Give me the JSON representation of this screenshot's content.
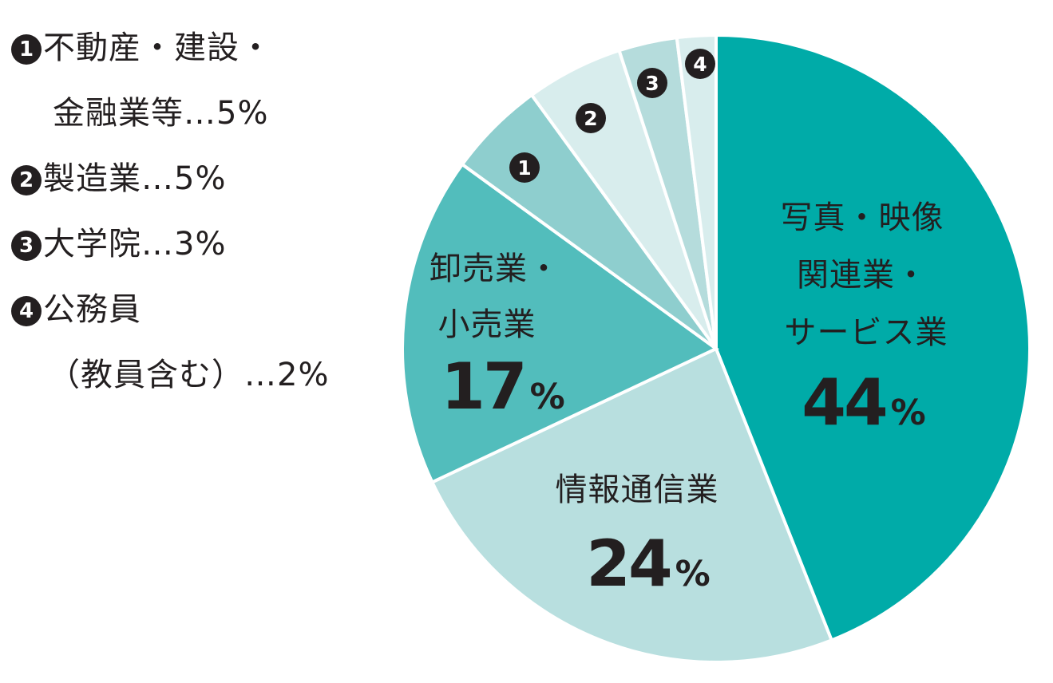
{
  "chart_data": {
    "type": "pie",
    "title": "",
    "start": "12 o'clock, clockwise",
    "slices": [
      {
        "key": "photo",
        "label_lines": [
          "写真・映像",
          "関連業・",
          "サービス業"
        ],
        "value": 44,
        "value_label": "44",
        "unit": "%",
        "color": "#00aba8"
      },
      {
        "key": "info",
        "label_lines": [
          "情報通信業"
        ],
        "value": 24,
        "value_label": "24",
        "unit": "%",
        "color": "#b8dfdf"
      },
      {
        "key": "retail",
        "label_lines": [
          "卸売業・",
          "小売業"
        ],
        "value": 17,
        "value_label": "17",
        "unit": "%",
        "color": "#52bdbc"
      },
      {
        "key": "s1",
        "marker": "1",
        "value": 5,
        "color": "#8ecece"
      },
      {
        "key": "s2",
        "marker": "2",
        "value": 5,
        "color": "#d8eded"
      },
      {
        "key": "s3",
        "marker": "3",
        "value": 3,
        "color": "#b5dcdc"
      },
      {
        "key": "s4",
        "marker": "4",
        "value": 2,
        "color": "#d8eded"
      }
    ]
  },
  "legend": [
    {
      "marker": "1",
      "lines": [
        "不動産・建設・",
        "金融業等…5%"
      ]
    },
    {
      "marker": "2",
      "lines": [
        "製造業…5%"
      ]
    },
    {
      "marker": "3",
      "lines": [
        "大学院…3%"
      ]
    },
    {
      "marker": "4",
      "lines": [
        "公務員",
        "（教員含む）…2%"
      ]
    }
  ]
}
